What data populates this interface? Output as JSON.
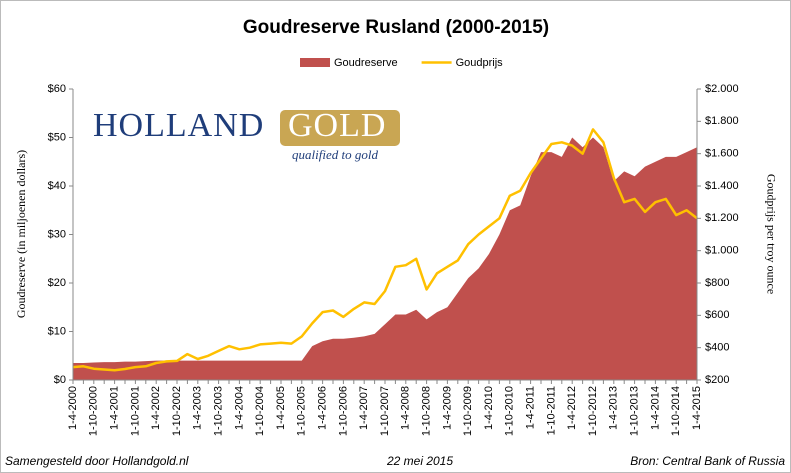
{
  "chart_data": {
    "type": "area-line",
    "title": "Goudreserve Rusland (2000-2015)",
    "y_label": "Goudreserve (in miljoenen dollars)",
    "y2_label": "Goudprijs per troy ounce",
    "logo": {
      "name_a": "HOLLAND",
      "name_b": "GOLD",
      "tagline": "qualified to gold"
    },
    "footer": {
      "left": "Samengesteld door Hollandgold.nl",
      "center": "22 mei 2015",
      "right": "Bron: Central Bank of Russia"
    },
    "categories": [
      "1-4-2000",
      null,
      "1-10-2000",
      null,
      "1-4-2001",
      null,
      "1-10-2001",
      null,
      "1-4-2002",
      null,
      "1-10-2002",
      null,
      "1-4-2003",
      null,
      "1-10-2003",
      null,
      "1-4-2004",
      null,
      "1-10-2004",
      null,
      "1-4-2005",
      null,
      "1-10-2005",
      null,
      "1-4-2006",
      null,
      "1-10-2006",
      null,
      "1-4-2007",
      null,
      "1-10-2007",
      null,
      "1-4-2008",
      null,
      "1-10-2008",
      null,
      "1-4-2009",
      null,
      "1-10-2009",
      null,
      "1-4-2010",
      null,
      "1-10-2010",
      null,
      "1-4-2011",
      null,
      "1-10-2011",
      null,
      "1-4-2012",
      null,
      "1-10-2012",
      null,
      "1-4-2013",
      null,
      "1-10-2013",
      null,
      "1-4-2014",
      null,
      "1-10-2014",
      null,
      "1-4-2015"
    ],
    "series": [
      {
        "name": "Goudreserve",
        "color": "#c0504d",
        "kind": "area",
        "axis": "y",
        "values": [
          3.5,
          3.5,
          3.6,
          3.7,
          3.7,
          3.8,
          3.8,
          3.9,
          4.0,
          4.0,
          4.0,
          4.0,
          4.0,
          4.0,
          4.0,
          4.0,
          4.0,
          4.0,
          4.0,
          4.0,
          4.0,
          4.0,
          4.0,
          7.0,
          8.0,
          8.5,
          8.5,
          8.7,
          9.0,
          9.5,
          11.5,
          13.5,
          13.5,
          14.5,
          12.5,
          14,
          15,
          18,
          21,
          23,
          26,
          30,
          35,
          36,
          42,
          47,
          47,
          46,
          50,
          48,
          50,
          48,
          41,
          43,
          42,
          44,
          45,
          46,
          46,
          47,
          48
        ]
      },
      {
        "name": "Goudprijs",
        "color": "#ffc000",
        "kind": "line",
        "axis": "y2",
        "values": [
          280,
          285,
          270,
          265,
          260,
          268,
          280,
          285,
          305,
          315,
          318,
          360,
          330,
          350,
          380,
          410,
          390,
          400,
          420,
          425,
          430,
          425,
          470,
          550,
          620,
          630,
          590,
          640,
          680,
          670,
          750,
          900,
          910,
          950,
          760,
          860,
          900,
          940,
          1040,
          1100,
          1150,
          1200,
          1340,
          1370,
          1480,
          1570,
          1660,
          1670,
          1650,
          1600,
          1750,
          1670,
          1450,
          1300,
          1320,
          1240,
          1300,
          1320,
          1220,
          1250,
          1200
        ]
      }
    ],
    "ylim": [
      0,
      60
    ],
    "yticks": [
      {
        "value": 0,
        "label": "$0"
      },
      {
        "value": 10,
        "label": "$10"
      },
      {
        "value": 20,
        "label": "$20"
      },
      {
        "value": 30,
        "label": "$30"
      },
      {
        "value": 40,
        "label": "$40"
      },
      {
        "value": 50,
        "label": "$50"
      },
      {
        "value": 60,
        "label": "$60"
      }
    ],
    "y2lim": [
      200,
      2000
    ],
    "y2ticks": [
      {
        "value": 200,
        "label": "$200"
      },
      {
        "value": 400,
        "label": "$400"
      },
      {
        "value": 600,
        "label": "$600"
      },
      {
        "value": 800,
        "label": "$800"
      },
      {
        "value": 1000,
        "label": "$1.000"
      },
      {
        "value": 1200,
        "label": "$1.200"
      },
      {
        "value": 1400,
        "label": "$1.400"
      },
      {
        "value": 1600,
        "label": "$1.600"
      },
      {
        "value": 1800,
        "label": "$1.800"
      },
      {
        "value": 2000,
        "label": "$2.000"
      }
    ],
    "legend": "top"
  }
}
